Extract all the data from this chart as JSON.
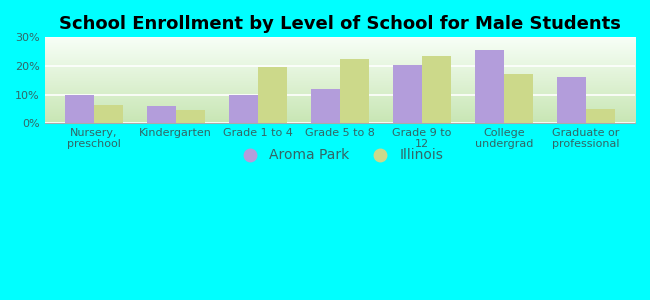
{
  "title": "School Enrollment by Level of School for Male Students",
  "categories": [
    "Nursery,\npreschool",
    "Kindergarten",
    "Grade 1 to 4",
    "Grade 5 to 8",
    "Grade 9 to\n12",
    "College\nundergrad",
    "Graduate or\nprofessional"
  ],
  "aroma_park": [
    9.8,
    6.2,
    9.8,
    12.0,
    20.5,
    25.5,
    16.2
  ],
  "illinois": [
    6.5,
    4.8,
    19.7,
    22.5,
    23.5,
    17.3,
    5.0
  ],
  "aroma_color": "#b39ddb",
  "illinois_color": "#ccd98a",
  "background_color": "#00ffff",
  "ylim": [
    0,
    30
  ],
  "yticks": [
    0,
    10,
    20,
    30
  ],
  "ytick_labels": [
    "0%",
    "10%",
    "20%",
    "30%"
  ],
  "legend_aroma": "Aroma Park",
  "legend_illinois": "Illinois",
  "bar_width": 0.35,
  "title_fontsize": 13,
  "tick_fontsize": 8,
  "legend_fontsize": 10,
  "label_color": "#336666",
  "grid_color": "#ffffff",
  "plot_bg_bottom": "#c8e6b0",
  "plot_bg_top": "#f8fff8"
}
